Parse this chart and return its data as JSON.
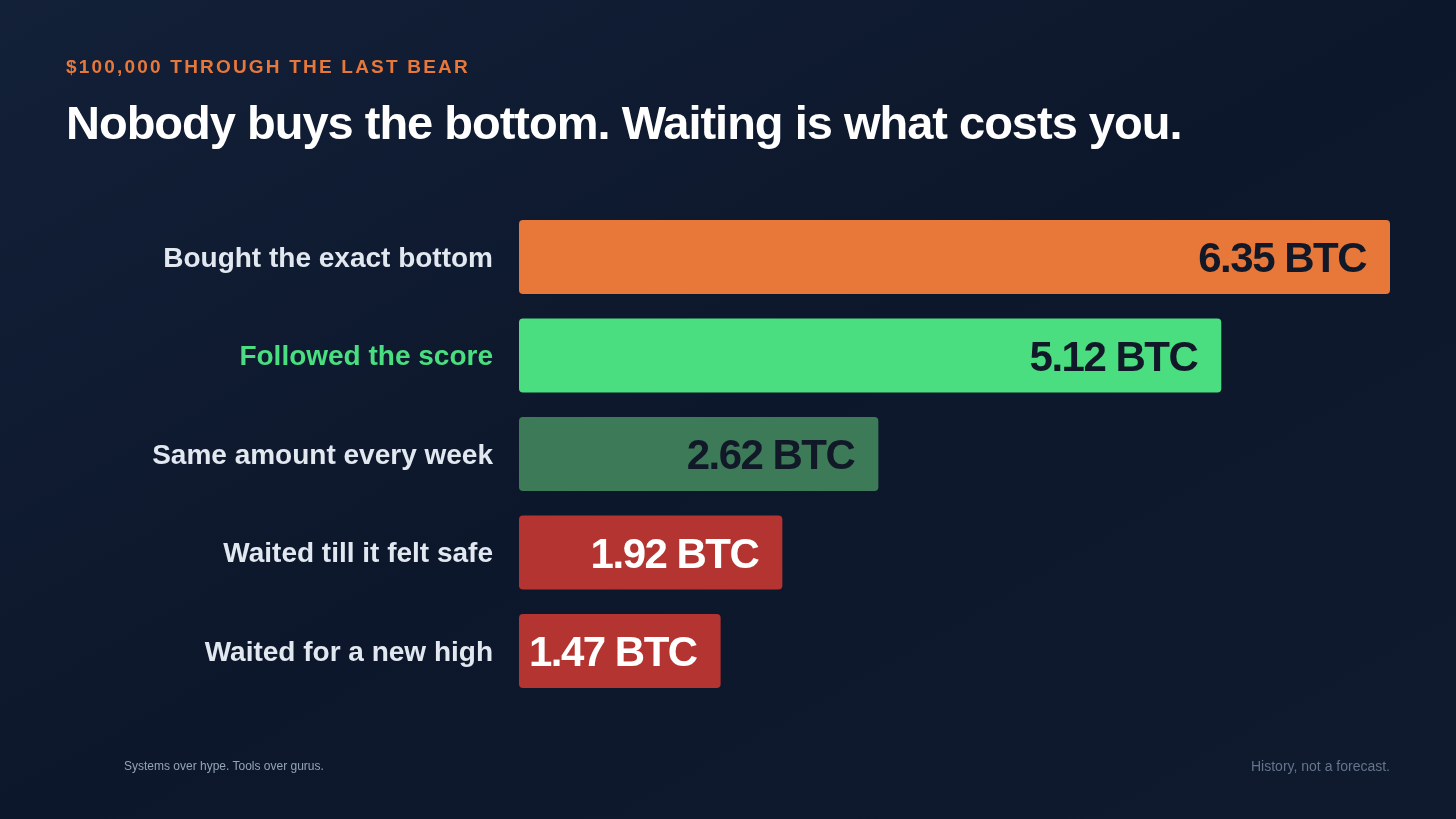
{
  "chart_data": {
    "type": "bar",
    "orientation": "horizontal",
    "subtitle": "$100,000 THROUGH THE LAST BEAR",
    "title": "Nobody buys the bottom. Waiting is what costs you.",
    "categories": [
      "Bought the exact bottom",
      "Followed the score",
      "Same amount every week",
      "Waited till it felt safe",
      "Waited for a new high"
    ],
    "values": [
      6.35,
      5.12,
      2.62,
      1.92,
      1.47
    ],
    "colors": [
      "#e8773a",
      "#4ade80",
      "#3d7a58",
      "#b33430",
      "#b33430"
    ],
    "value_labels": [
      "6.35 BTC",
      "5.12 BTC",
      "2.62 BTC",
      "1.92 BTC",
      "1.47 BTC"
    ],
    "annotations": [
      "Systems over hype. Tools over gurus.",
      "History, not a forecast."
    ]
  }
}
